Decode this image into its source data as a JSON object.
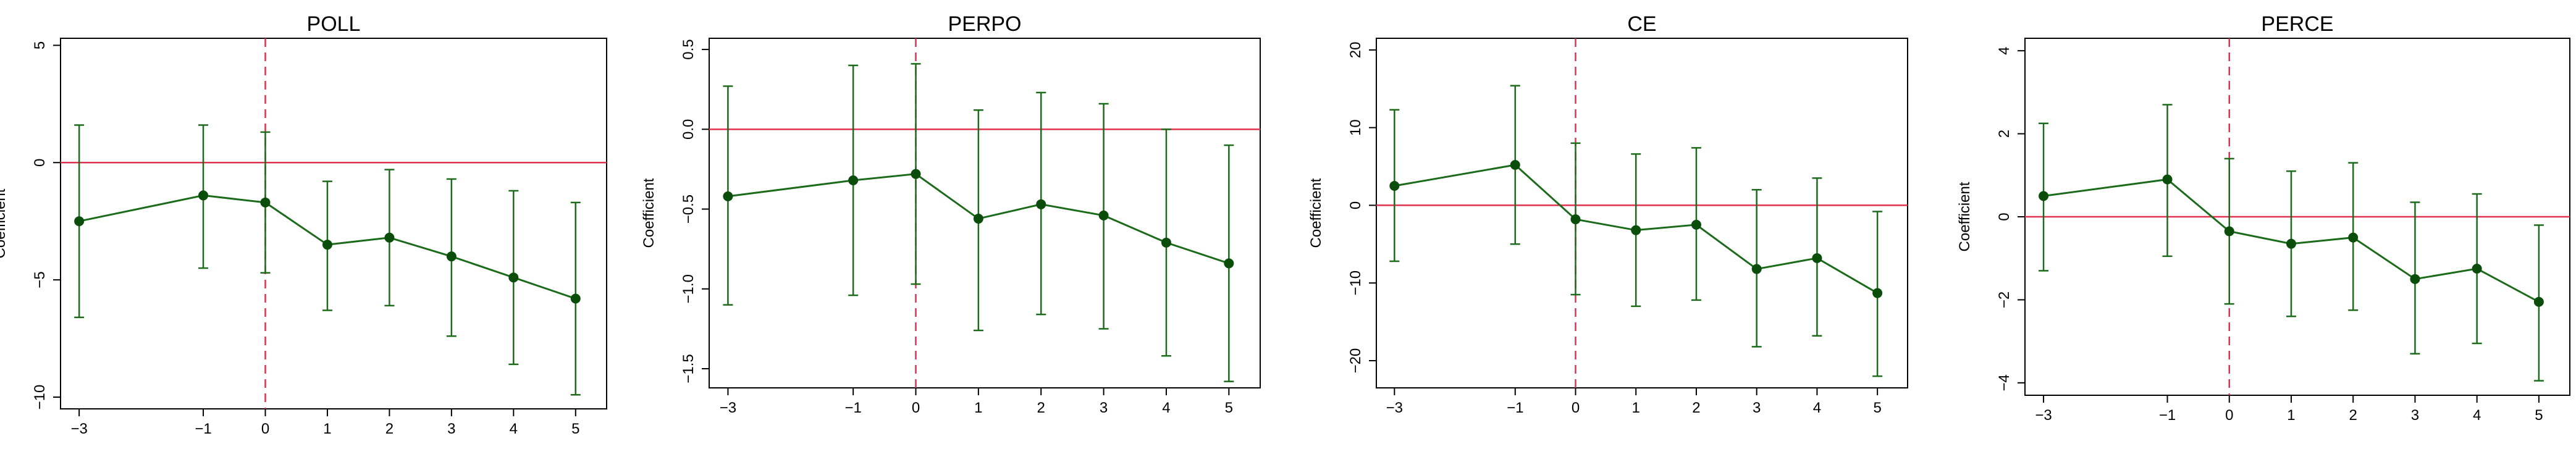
{
  "colors": {
    "series": "#1b6b1b",
    "point": "#0b4d0b",
    "zero_line": "#e0304e",
    "event_line": "#e0304e",
    "frame": "#000000"
  },
  "chart_data": [
    {
      "type": "line",
      "title": "POLL",
      "ylabel": "Coefficient",
      "xlabel": "",
      "x": [
        -3,
        -1,
        0,
        1,
        2,
        3,
        4,
        5
      ],
      "x_ticks": [
        -3,
        -1,
        0,
        1,
        2,
        3,
        4,
        5
      ],
      "x_tick_labels": [
        "−3",
        "−1",
        "0",
        "1",
        "2",
        "3",
        "4",
        "5"
      ],
      "xlim": [
        -3.3,
        5.5
      ],
      "y_ticks": [
        5,
        0,
        -5,
        -10
      ],
      "y_tick_labels": [
        "5",
        "0",
        "−5",
        "−10"
      ],
      "ylim": [
        -10.5,
        5.3
      ],
      "series": [
        {
          "values": [
            -2.5,
            -1.4,
            -1.7,
            -3.5,
            -3.2,
            -4.0,
            -4.9,
            -5.8
          ],
          "ci_low": [
            -6.6,
            -4.5,
            -4.7,
            -6.3,
            -6.1,
            -7.4,
            -8.6,
            -9.9
          ],
          "ci_high": [
            1.6,
            1.6,
            1.3,
            -0.8,
            -0.3,
            -0.7,
            -1.2,
            -1.7
          ]
        }
      ],
      "reference_lines": {
        "horizontal": 0,
        "vertical": 0
      },
      "grid": false
    },
    {
      "type": "line",
      "title": "PERPO",
      "ylabel": "Coefficient",
      "xlabel": "",
      "x": [
        -3,
        -1,
        0,
        1,
        2,
        3,
        4,
        5
      ],
      "x_ticks": [
        -3,
        -1,
        0,
        1,
        2,
        3,
        4,
        5
      ],
      "x_tick_labels": [
        "−3",
        "−1",
        "0",
        "1",
        "2",
        "3",
        "4",
        "5"
      ],
      "xlim": [
        -3.3,
        5.5
      ],
      "y_ticks": [
        0.5,
        0,
        -0.5,
        -1,
        -1.5
      ],
      "y_tick_labels": [
        "0.5",
        "0.0",
        "−0.5",
        "−1.0",
        "−1.5"
      ],
      "ylim": [
        -1.62,
        0.57
      ],
      "series": [
        {
          "values": [
            -0.42,
            -0.32,
            -0.28,
            -0.56,
            -0.47,
            -0.54,
            -0.71,
            -0.84
          ],
          "ci_low": [
            -1.1,
            -1.04,
            -0.97,
            -1.26,
            -1.16,
            -1.25,
            -1.42,
            -1.58
          ],
          "ci_high": [
            0.27,
            0.4,
            0.41,
            0.12,
            0.23,
            0.16,
            0.0,
            -0.1
          ]
        }
      ],
      "reference_lines": {
        "horizontal": 0,
        "vertical": 0
      },
      "grid": false
    },
    {
      "type": "line",
      "title": "CE",
      "ylabel": "Coefficient",
      "xlabel": "",
      "x": [
        -3,
        -1,
        0,
        1,
        2,
        3,
        4,
        5
      ],
      "x_ticks": [
        -3,
        -1,
        0,
        1,
        2,
        3,
        4,
        5
      ],
      "x_tick_labels": [
        "−3",
        "−1",
        "0",
        "1",
        "2",
        "3",
        "4",
        "5"
      ],
      "xlim": [
        -3.3,
        5.5
      ],
      "y_ticks": [
        20,
        10,
        0,
        -10,
        -20
      ],
      "y_tick_labels": [
        "20",
        "10",
        "0",
        "−10",
        "−20"
      ],
      "ylim": [
        -23.5,
        21.5
      ],
      "series": [
        {
          "values": [
            2.5,
            5.2,
            -1.8,
            -3.2,
            -2.5,
            -8.2,
            -6.8,
            -11.3
          ],
          "ci_low": [
            -7.2,
            -5.0,
            -11.5,
            -13.0,
            -12.2,
            -18.2,
            -16.8,
            -22.0
          ],
          "ci_high": [
            12.3,
            15.4,
            8.0,
            6.6,
            7.4,
            2.0,
            3.5,
            -0.8
          ]
        }
      ],
      "reference_lines": {
        "horizontal": 0,
        "vertical": 0
      },
      "grid": false
    },
    {
      "type": "line",
      "title": "PERCE",
      "ylabel": "Coefficient",
      "xlabel": "",
      "x": [
        -3,
        -1,
        0,
        1,
        2,
        3,
        4,
        5
      ],
      "x_ticks": [
        -3,
        -1,
        0,
        1,
        2,
        3,
        4,
        5
      ],
      "x_tick_labels": [
        "−3",
        "−1",
        "0",
        "1",
        "2",
        "3",
        "4",
        "5"
      ],
      "xlim": [
        -3.3,
        5.5
      ],
      "y_ticks": [
        4,
        2,
        0,
        -2,
        -4
      ],
      "y_tick_labels": [
        "4",
        "2",
        "0",
        "−2",
        "−4"
      ],
      "ylim": [
        -4.3,
        4.3
      ],
      "series": [
        {
          "values": [
            0.5,
            0.9,
            -0.35,
            -0.65,
            -0.5,
            -1.5,
            -1.25,
            -2.05
          ],
          "ci_low": [
            -1.3,
            -0.95,
            -2.1,
            -2.4,
            -2.25,
            -3.3,
            -3.05,
            -3.95
          ],
          "ci_high": [
            2.25,
            2.7,
            1.4,
            1.1,
            1.3,
            0.35,
            0.55,
            -0.2
          ]
        }
      ],
      "reference_lines": {
        "horizontal": 0,
        "vertical": 0
      },
      "grid": false
    }
  ]
}
